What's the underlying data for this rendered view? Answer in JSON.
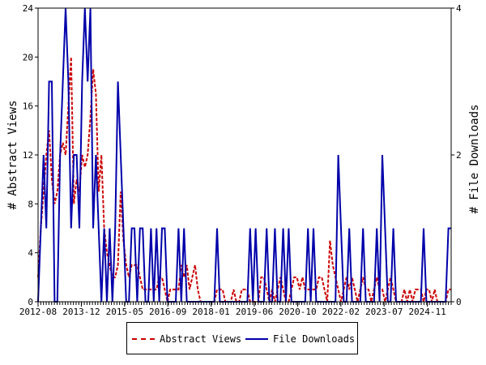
{
  "chart_data": {
    "type": "line",
    "ylabel_left": "# Abstract Views",
    "ylabel_right": "# File Downloads",
    "ylim_left": [
      0,
      24
    ],
    "ylim_right": [
      0,
      4
    ],
    "yticks_left": [
      0,
      4,
      8,
      12,
      16,
      20,
      24
    ],
    "yticks_right": [
      0,
      2,
      4
    ],
    "xticks": [
      "2012-08",
      "2013-12",
      "2015-05",
      "2016-09",
      "2018-01",
      "2019-06",
      "2020-10",
      "2022-02",
      "2023-07",
      "2024-11"
    ],
    "grid": false,
    "legend_placement": "bottom-center",
    "series": [
      {
        "name": "Abstract Views",
        "axis": "left",
        "color": "#cc0000",
        "style": "dashed",
        "values": [
          2,
          6,
          9,
          12,
          14,
          10,
          8,
          9,
          12,
          13,
          12,
          16,
          20,
          8,
          10,
          9,
          12,
          11,
          12,
          15,
          19,
          17,
          9,
          12,
          6,
          4,
          3,
          2,
          2,
          3,
          9,
          5,
          3,
          2,
          3,
          3,
          3,
          2,
          1,
          1,
          1,
          1,
          1,
          1,
          2,
          2,
          1,
          0,
          1,
          1,
          1,
          1,
          3,
          2,
          3,
          1,
          2,
          3,
          1,
          0,
          0,
          0,
          0,
          0,
          0,
          1,
          1,
          1,
          0,
          0,
          0,
          1,
          0,
          0,
          1,
          1,
          1,
          0,
          0,
          0,
          0,
          2,
          2,
          1,
          0,
          1,
          0,
          1,
          2,
          1,
          0,
          0,
          1,
          2,
          2,
          1,
          2,
          1,
          1,
          1,
          1,
          1,
          2,
          2,
          1,
          0,
          5,
          3,
          2,
          1,
          0,
          1,
          2,
          1,
          2,
          1,
          0,
          1,
          2,
          1,
          1,
          0,
          1,
          2,
          1,
          1,
          0,
          1,
          2,
          1,
          0,
          0,
          0,
          1,
          0,
          1,
          0,
          1,
          1,
          1,
          0,
          1,
          1,
          0,
          1,
          0,
          0,
          0,
          0,
          1,
          1
        ]
      },
      {
        "name": "File Downloads",
        "axis": "right",
        "color": "#0000aa",
        "style": "solid",
        "values": [
          0,
          1,
          2,
          1,
          3,
          3,
          0,
          0,
          2,
          3,
          4,
          3,
          1,
          2,
          2,
          1,
          3,
          4,
          3,
          4,
          1,
          2,
          1,
          0,
          1,
          0,
          1,
          0,
          1,
          3,
          2,
          1,
          0,
          0,
          1,
          1,
          0,
          1,
          1,
          0,
          0,
          1,
          0,
          1,
          0,
          1,
          1,
          0,
          0,
          0,
          0,
          1,
          0,
          1,
          0,
          0,
          0,
          0,
          0,
          0,
          0,
          0,
          0,
          0,
          0,
          1,
          0,
          0,
          0,
          0,
          0,
          0,
          0,
          0,
          0,
          0,
          0,
          1,
          0,
          1,
          0,
          0,
          0,
          1,
          0,
          0,
          1,
          0,
          0,
          1,
          0,
          1,
          0,
          0,
          0,
          0,
          0,
          0,
          1,
          0,
          1,
          0,
          0,
          0,
          0,
          0,
          0,
          0,
          0,
          2,
          1,
          0,
          0,
          1,
          0,
          0,
          0,
          0,
          1,
          0,
          0,
          0,
          0,
          1,
          0,
          2,
          1,
          0,
          0,
          1,
          0,
          0,
          0,
          0,
          0,
          0,
          0,
          0,
          0,
          0,
          1,
          0,
          0,
          0,
          0,
          0,
          0,
          0,
          0,
          1,
          1
        ]
      }
    ]
  }
}
